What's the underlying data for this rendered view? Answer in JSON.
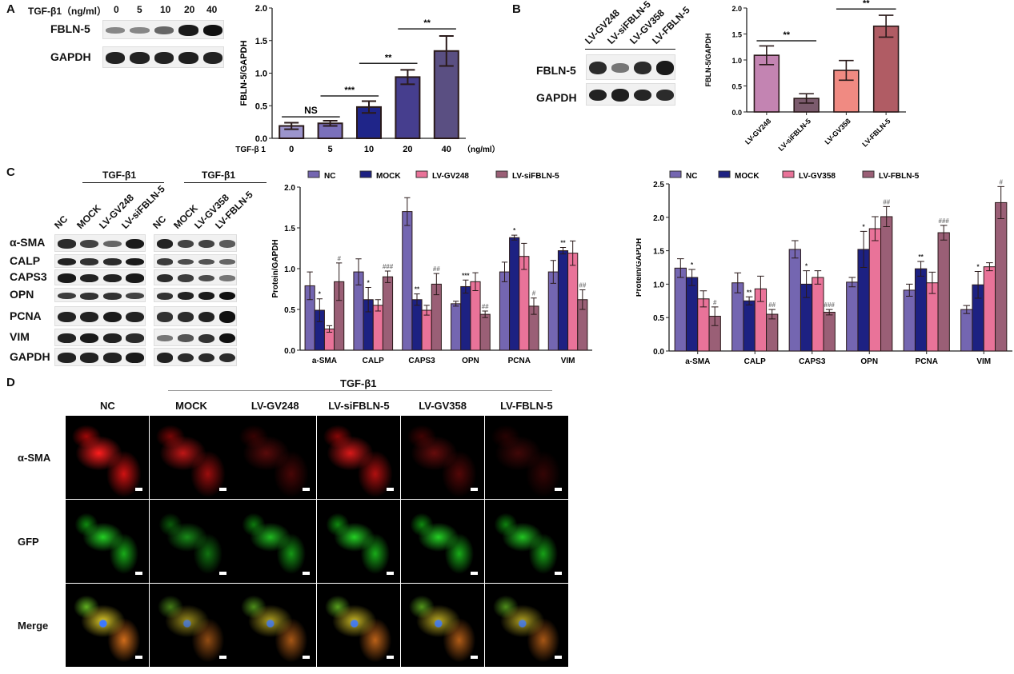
{
  "panels": {
    "A": {
      "letter": "A",
      "header": "TGF-β1（ng/ml）",
      "doses": [
        "0",
        "5",
        "10",
        "20",
        "40"
      ],
      "rows": [
        {
          "label": "FBLN-5",
          "band_intensity": [
            0.3,
            0.3,
            0.5,
            0.95,
            1.0
          ]
        },
        {
          "label": "GAPDH",
          "band_intensity": [
            0.9,
            0.9,
            0.9,
            0.92,
            0.9
          ]
        }
      ]
    },
    "B": {
      "letter": "B",
      "lanes": [
        "LV-GV248",
        "LV-siFBLN-5",
        "LV-GV358",
        "LV-FBLN-5"
      ],
      "rows": [
        {
          "label": "FBLN-5",
          "band_intensity": [
            0.85,
            0.4,
            0.85,
            0.95
          ]
        },
        {
          "label": "GAPDH",
          "band_intensity": [
            0.9,
            0.92,
            0.88,
            0.85
          ]
        }
      ]
    },
    "C": {
      "letter": "C",
      "group_header": "TGF-β1",
      "lanes_left": [
        "NC",
        "MOCK",
        "LV-GV248",
        "LV-siFBLN-5"
      ],
      "lanes_right": [
        "NC",
        "MOCK",
        "LV-GV358",
        "LV-FBLN-5"
      ],
      "rows": [
        {
          "label": "α-SMA"
        },
        {
          "label": "CALP"
        },
        {
          "label": "CAPS3"
        },
        {
          "label": "OPN",
          "right": [
            0.8,
            0.9,
            0.95,
            1.0
          ]
        },
        {
          "label": "PCNA",
          "right": [
            0.8,
            0.85,
            0.9,
            1.0
          ]
        },
        {
          "label": "VIM",
          "right": [
            0.4,
            0.6,
            0.8,
            1.0
          ]
        },
        {
          "label": "GAPDH"
        }
      ]
    },
    "D": {
      "letter": "D",
      "group_header": "TGF-β1",
      "columns": [
        "NC",
        "MOCK",
        "LV-GV248",
        "LV-siFBLN-5",
        "LV-GV358",
        "LV-FBLN-5"
      ],
      "rows": [
        {
          "label": "α-SMA",
          "intensity": [
            1.0,
            0.75,
            0.35,
            0.85,
            0.4,
            0.25
          ]
        },
        {
          "label": "GFP",
          "intensity": [
            0.9,
            0.6,
            0.8,
            0.9,
            0.9,
            0.85
          ]
        },
        {
          "label": "Merge",
          "intensity": [
            1.0,
            0.7,
            0.8,
            0.9,
            0.85,
            0.8
          ]
        }
      ]
    }
  },
  "chart_data": [
    {
      "type": "bar",
      "title": "",
      "ylabel": "FBLN-5/GAPDH",
      "xlabel_prefix": "TGF-β 1",
      "xunit": "（ng/ml）",
      "categories": [
        "0",
        "5",
        "10",
        "20",
        "40"
      ],
      "values": [
        0.19,
        0.23,
        0.48,
        0.94,
        1.34
      ],
      "errors": [
        0.05,
        0.04,
        0.09,
        0.11,
        0.23
      ],
      "colors": [
        "#9c94cc",
        "#7b70ba",
        "#1f2589",
        "#463e8e",
        "#5a4f82"
      ],
      "ylim": [
        0,
        2.0
      ],
      "yticks": [
        "0.0",
        "0.5",
        "1.0",
        "1.5",
        "2.0"
      ],
      "brackets": [
        {
          "from": 0,
          "to": 1,
          "label": "NS",
          "y": 0.33
        },
        {
          "from": 1,
          "to": 2,
          "label": "***",
          "y": 0.65
        },
        {
          "from": 2,
          "to": 3,
          "label": "**",
          "y": 1.15
        },
        {
          "from": 3,
          "to": 4,
          "label": "**",
          "y": 1.68
        }
      ]
    },
    {
      "type": "bar",
      "ylabel": "FBLN-5/GAPDH",
      "categories": [
        "LV-GV248",
        "LV-siFBLN-5",
        "LV-GV358",
        "LV-FBLN-5"
      ],
      "values": [
        1.09,
        0.26,
        0.8,
        1.65
      ],
      "errors": [
        0.18,
        0.09,
        0.19,
        0.21
      ],
      "colors": [
        "#c384b2",
        "#7b5b6d",
        "#f08a82",
        "#b05c64"
      ],
      "ylim": [
        0,
        2.0
      ],
      "yticks": [
        "0.0",
        "0.5",
        "1.0",
        "1.5",
        "2.0"
      ],
      "brackets": [
        {
          "from": 0,
          "to": 1,
          "label": "**",
          "y": 1.37
        },
        {
          "from": 2,
          "to": 3,
          "label": "**",
          "y": 1.98
        }
      ]
    },
    {
      "type": "bar",
      "ylabel": "Protein/GAPDH",
      "categories": [
        "a-SMA",
        "CALP",
        "CAPS3",
        "OPN",
        "PCNA",
        "VIM"
      ],
      "ylim": [
        0,
        2.0
      ],
      "yticks": [
        "0.0",
        "0.5",
        "1.0",
        "1.5",
        "2.0"
      ],
      "series": [
        {
          "name": "NC",
          "color": "#7466b1",
          "values": [
            0.79,
            0.96,
            1.7,
            0.57,
            0.96,
            0.96
          ],
          "errors": [
            0.17,
            0.16,
            0.17,
            0.03,
            0.12,
            0.14
          ],
          "marks": [
            "",
            "",
            "",
            "",
            "",
            ""
          ]
        },
        {
          "name": "MOCK",
          "color": "#1d2182",
          "values": [
            0.49,
            0.62,
            0.62,
            0.78,
            1.38,
            1.22
          ],
          "errors": [
            0.14,
            0.15,
            0.07,
            0.08,
            0.03,
            0.04
          ],
          "marks": [
            "*",
            "*",
            "**",
            "***",
            "*",
            "**"
          ]
        },
        {
          "name": "LV-GV248",
          "color": "#e97399",
          "values": [
            0.26,
            0.55,
            0.49,
            0.84,
            1.15,
            1.19
          ],
          "errors": [
            0.04,
            0.07,
            0.06,
            0.11,
            0.16,
            0.15
          ],
          "marks": [
            "",
            "",
            "",
            "",
            "",
            ""
          ]
        },
        {
          "name": "LV-siFBLN-5",
          "color": "#9a5f76",
          "values": [
            0.84,
            0.9,
            0.81,
            0.44,
            0.54,
            0.62
          ],
          "errors": [
            0.23,
            0.07,
            0.13,
            0.04,
            0.1,
            0.12
          ],
          "marks": [
            "#",
            "###",
            "##",
            "##",
            "#",
            "##"
          ]
        }
      ]
    },
    {
      "type": "bar",
      "ylabel": "Protein/GAPDH",
      "categories": [
        "a-SMA",
        "CALP",
        "CAPS3",
        "OPN",
        "PCNA",
        "VIM"
      ],
      "ylim": [
        0,
        2.5
      ],
      "yticks": [
        "0.0",
        "0.5",
        "1.0",
        "1.5",
        "2.0",
        "2.5"
      ],
      "series": [
        {
          "name": "NC",
          "color": "#7466b1",
          "values": [
            1.24,
            1.02,
            1.52,
            1.03,
            0.91,
            0.62
          ],
          "errors": [
            0.14,
            0.15,
            0.13,
            0.07,
            0.09,
            0.06
          ],
          "marks": [
            "",
            "",
            "",
            "",
            "",
            ""
          ]
        },
        {
          "name": "MOCK",
          "color": "#1d2182",
          "values": [
            1.1,
            0.75,
            1.0,
            1.52,
            1.23,
            0.99
          ],
          "errors": [
            0.12,
            0.06,
            0.2,
            0.27,
            0.11,
            0.2
          ],
          "marks": [
            "*",
            "**",
            "*",
            "*",
            "**",
            "*"
          ]
        },
        {
          "name": "LV-GV358",
          "color": "#e97399",
          "values": [
            0.78,
            0.93,
            1.1,
            1.83,
            1.02,
            1.26
          ],
          "errors": [
            0.12,
            0.19,
            0.1,
            0.18,
            0.16,
            0.06
          ],
          "marks": [
            "",
            "",
            "",
            "",
            "",
            ""
          ]
        },
        {
          "name": "LV-FBLN-5",
          "color": "#9a5f76",
          "values": [
            0.52,
            0.55,
            0.58,
            2.01,
            1.77,
            2.22
          ],
          "errors": [
            0.14,
            0.07,
            0.04,
            0.15,
            0.11,
            0.24
          ],
          "marks": [
            "#",
            "##",
            "###",
            "##",
            "###",
            "#"
          ]
        }
      ]
    }
  ]
}
